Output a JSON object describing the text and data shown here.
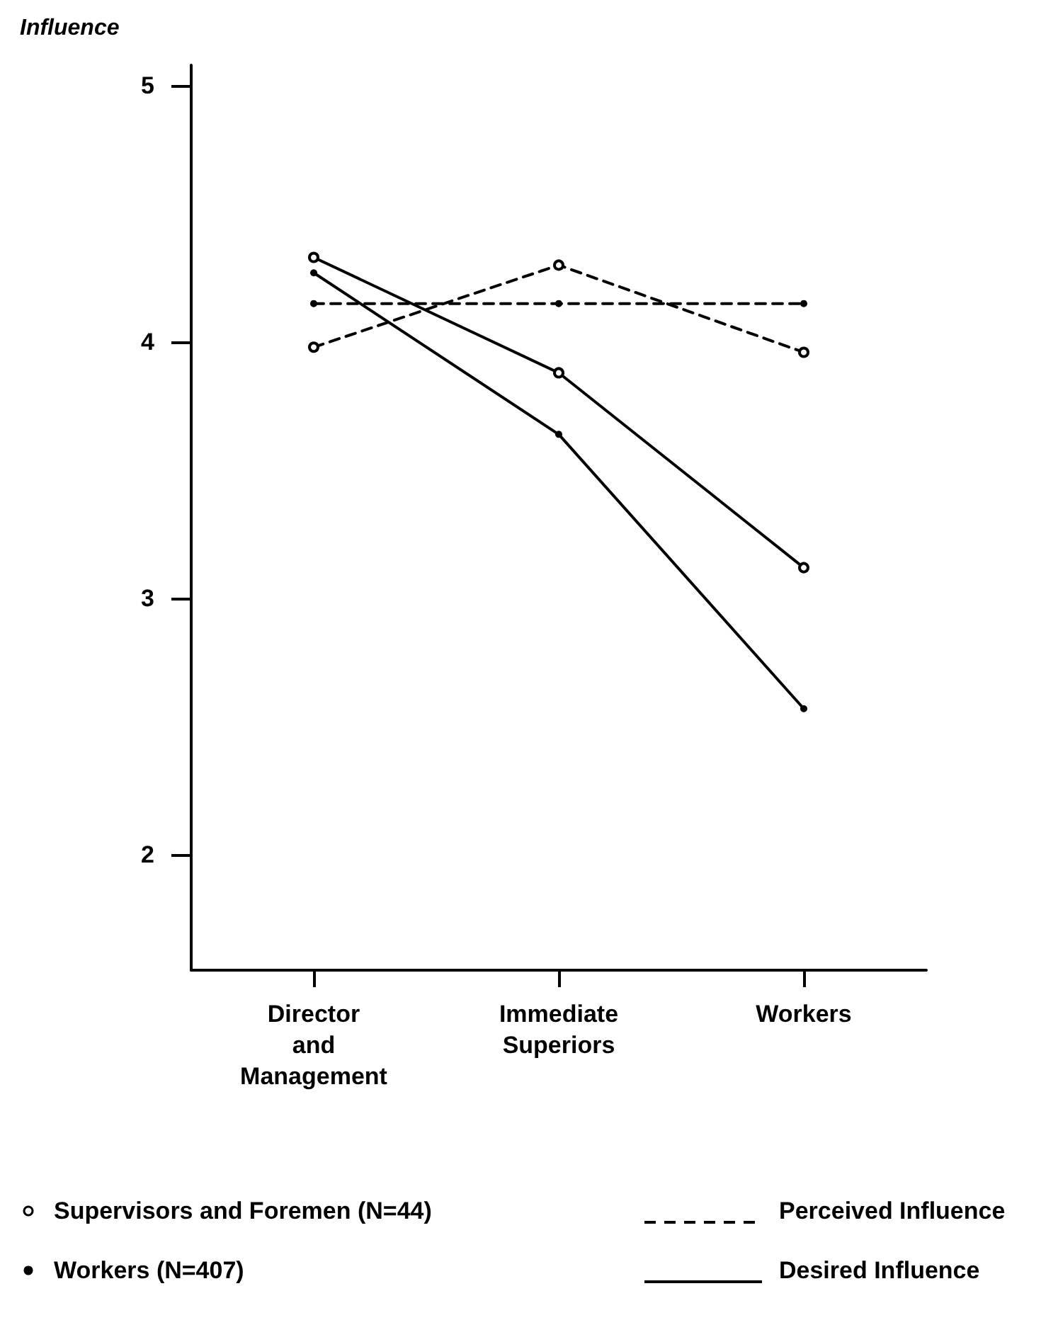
{
  "chart_data": {
    "type": "line",
    "ylabel": "Influence",
    "categories": [
      "Director\nand\nManagement",
      "Immediate\nSuperiors",
      "Workers"
    ],
    "ylim": [
      1.55,
      5.08
    ],
    "yticks": [
      2,
      3,
      4,
      5
    ],
    "grid": false,
    "legend": "bottom",
    "annotations": [
      "Perceived Influence",
      "Desired Influence"
    ],
    "series": [
      {
        "name": "Supervisors and Foremen (N=44)",
        "color": "#000000",
        "marker": "open_circle",
        "line_style": "dashed",
        "values": [
          3.98,
          4.3,
          3.96
        ]
      },
      {
        "name": "Workers (N=407)",
        "color": "#000000",
        "marker": "circle",
        "line_style": "dashed",
        "values": [
          4.15,
          4.15,
          4.15
        ]
      },
      {
        "color": "#000000",
        "marker": "open_circle",
        "line_style": "solid",
        "values": [
          4.33,
          3.88,
          3.12
        ]
      },
      {
        "color": "#000000",
        "marker": "circle",
        "line_style": "solid",
        "values": [
          4.27,
          3.64,
          2.57
        ]
      }
    ]
  }
}
